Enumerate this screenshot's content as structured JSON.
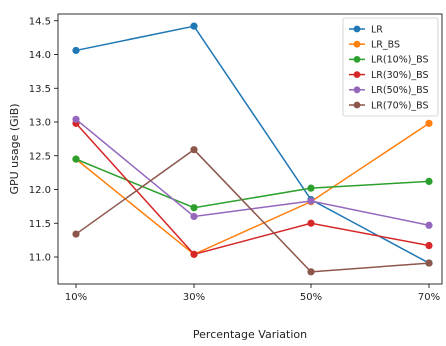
{
  "chart_data": {
    "type": "line",
    "title": "",
    "xlabel": "Percentage Variation",
    "ylabel": "GPU usage (GiB)",
    "categories": [
      "10%",
      "30%",
      "50%",
      "70%"
    ],
    "ylim": [
      10.6,
      14.6
    ],
    "yticks": [
      11.0,
      11.5,
      12.0,
      12.5,
      13.0,
      13.5,
      14.0,
      14.5
    ],
    "ytick_labels": [
      "11.0",
      "11.5",
      "12.0",
      "12.5",
      "13.0",
      "13.5",
      "14.0",
      "14.5"
    ],
    "grid": false,
    "legend_position": "top-right",
    "series": [
      {
        "name": "LR",
        "color": "#1f77b4",
        "values": [
          14.06,
          14.42,
          11.85,
          10.91
        ]
      },
      {
        "name": "LR_BS",
        "color": "#ff7f0e",
        "values": [
          12.45,
          11.04,
          11.82,
          12.98
        ]
      },
      {
        "name": "LR(10%)_BS",
        "color": "#2ca02c",
        "values": [
          12.45,
          11.73,
          12.02,
          12.12
        ]
      },
      {
        "name": "LR(30%)_BS",
        "color": "#d62728",
        "values": [
          12.98,
          11.04,
          11.5,
          11.17
        ]
      },
      {
        "name": "LR(50%)_BS",
        "color": "#9467bd",
        "values": [
          13.04,
          11.6,
          11.83,
          11.47
        ]
      },
      {
        "name": "LR(70%)_BS",
        "color": "#8c564b",
        "values": [
          11.34,
          12.59,
          10.78,
          10.91
        ]
      }
    ]
  }
}
